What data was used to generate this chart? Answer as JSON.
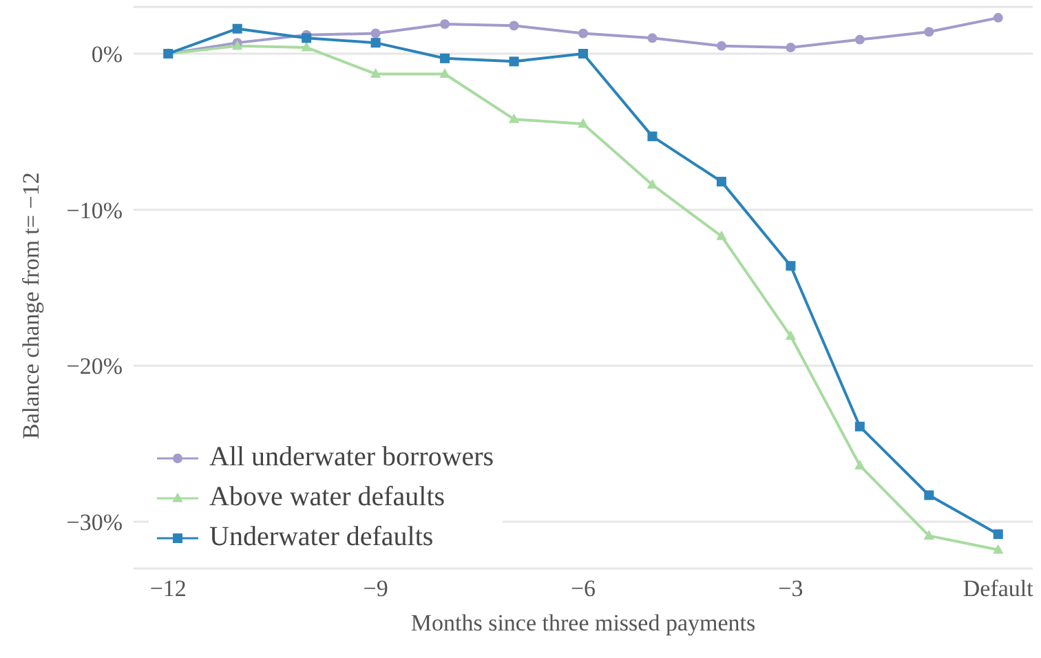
{
  "chart_data": {
    "type": "line",
    "xlabel": "Months since three missed payments",
    "ylabel": "Balance change from t= −12",
    "x": [
      -12,
      -11,
      -10,
      -9,
      -8,
      -7,
      -6,
      -5,
      -4,
      -3,
      -2,
      -1,
      0
    ],
    "series": [
      {
        "name": "All underwater borrowers",
        "color": "#a29bcb",
        "marker": "circle",
        "values": [
          0,
          0.7,
          1.2,
          1.3,
          1.9,
          1.8,
          1.3,
          1.0,
          0.5,
          0.4,
          0.9,
          1.4,
          2.3
        ]
      },
      {
        "name": "Above water defaults",
        "color": "#a8dba0",
        "marker": "triangle",
        "values": [
          0,
          0.5,
          0.4,
          -1.3,
          -1.3,
          -4.2,
          -4.5,
          -8.4,
          -11.7,
          -18.1,
          -26.4,
          -30.9,
          -31.8
        ]
      },
      {
        "name": "Underwater defaults",
        "color": "#2b83ba",
        "marker": "square",
        "values": [
          0,
          1.6,
          1.0,
          0.7,
          -0.3,
          -0.5,
          0,
          -5.3,
          -8.2,
          -13.6,
          -23.9,
          -28.3,
          -30.8
        ]
      }
    ],
    "xlim": [
      -12.5,
      0.5
    ],
    "xticks": [
      {
        "value": -12,
        "label": "−12"
      },
      {
        "value": -9,
        "label": "−9"
      },
      {
        "value": -6,
        "label": "−6"
      },
      {
        "value": -3,
        "label": "−3"
      },
      {
        "value": 0,
        "label": "Default"
      }
    ],
    "ylim": [
      -33,
      3
    ],
    "yticks": [
      {
        "value": -30,
        "label": "−30%"
      },
      {
        "value": -20,
        "label": "−20%"
      },
      {
        "value": -10,
        "label": "−10%"
      },
      {
        "value": 0,
        "label": "0%"
      }
    ],
    "grid": "y",
    "legend": "bottom left",
    "line_style": "solid"
  }
}
